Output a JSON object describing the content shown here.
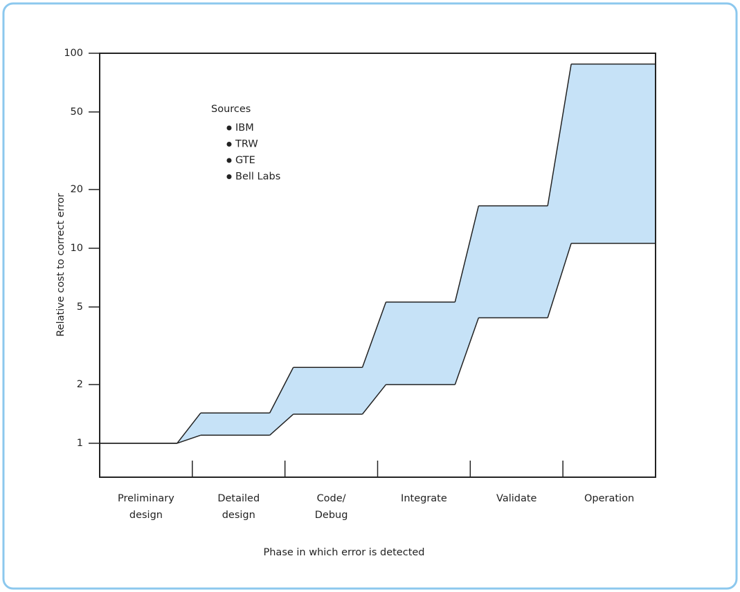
{
  "chart_data": {
    "type": "band",
    "categories": [
      [
        "Preliminary",
        "design"
      ],
      [
        "Detailed",
        "design"
      ],
      [
        "Code/",
        "Debug"
      ],
      [
        "Integrate"
      ],
      [
        "Validate"
      ],
      [
        "Operation"
      ]
    ],
    "band": {
      "lower": [
        1,
        1.1,
        1.41,
        2.0,
        4.4,
        10.6
      ],
      "upper": [
        1,
        1.43,
        2.45,
        5.3,
        16.5,
        88
      ],
      "color": "#c6e2f7"
    },
    "ylim": [
      0.67,
      100
    ],
    "yticks": [
      1,
      2,
      5,
      10,
      20,
      50,
      100
    ],
    "log_y": true,
    "y_label": "Relative cost to correct error",
    "x_label": "Phase in which error is detected",
    "legend": {
      "title": "Sources",
      "items": [
        "IBM",
        "TRW",
        "GTE",
        "Bell Labs"
      ]
    }
  }
}
